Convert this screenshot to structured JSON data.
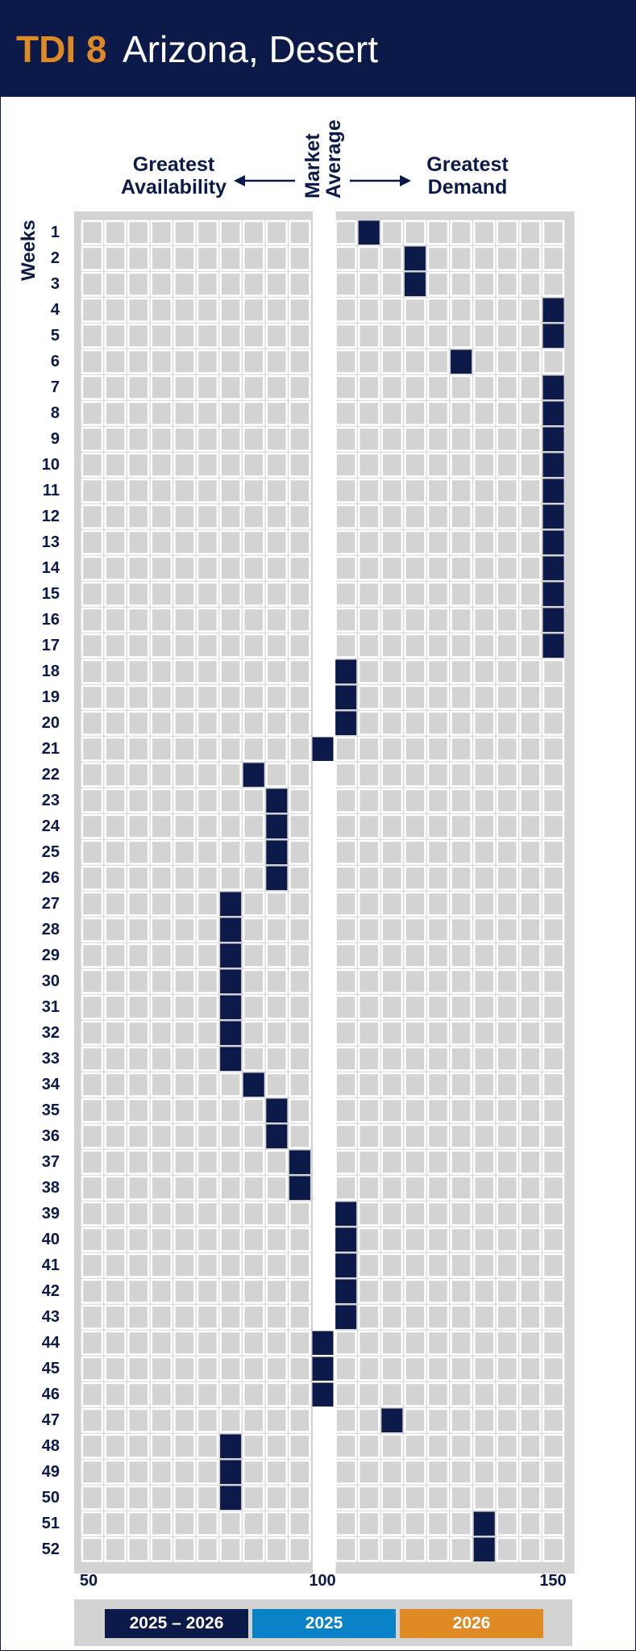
{
  "header": {
    "code": "TDI 8",
    "title": "Arizona, Desert"
  },
  "labels": {
    "left": [
      "Greatest",
      "Availability"
    ],
    "right": [
      "Greatest",
      "Demand"
    ],
    "middle": [
      "Market",
      "Average"
    ],
    "weeks": "Weeks"
  },
  "legend": [
    {
      "label": "2025 – 2026",
      "color": "#0c1a4a"
    },
    {
      "label": "2025",
      "color": "#0a82c8"
    },
    {
      "label": "2026",
      "color": "#e08a26"
    }
  ],
  "chart_data": {
    "type": "heatmap",
    "title": "Arizona, Desert",
    "xlim": [
      50,
      150
    ],
    "x_ticks": [
      50,
      100,
      150
    ],
    "ylabel": "Weeks",
    "weeks": [
      1,
      2,
      3,
      4,
      5,
      6,
      7,
      8,
      9,
      10,
      11,
      12,
      13,
      14,
      15,
      16,
      17,
      18,
      19,
      20,
      21,
      22,
      23,
      24,
      25,
      26,
      27,
      28,
      29,
      30,
      31,
      32,
      33,
      34,
      35,
      36,
      37,
      38,
      39,
      40,
      41,
      42,
      43,
      44,
      45,
      46,
      47,
      48,
      49,
      50,
      51,
      52
    ],
    "values": [
      110,
      120,
      120,
      150,
      150,
      130,
      150,
      150,
      150,
      150,
      150,
      150,
      150,
      150,
      150,
      150,
      150,
      105,
      105,
      105,
      100,
      85,
      90,
      90,
      90,
      90,
      80,
      80,
      80,
      80,
      80,
      80,
      80,
      85,
      90,
      90,
      95,
      95,
      105,
      105,
      105,
      105,
      105,
      100,
      100,
      100,
      115,
      80,
      80,
      80,
      135,
      135
    ],
    "series": [
      {
        "name": "2025 – 2026",
        "color": "#0c1a4a"
      }
    ]
  }
}
